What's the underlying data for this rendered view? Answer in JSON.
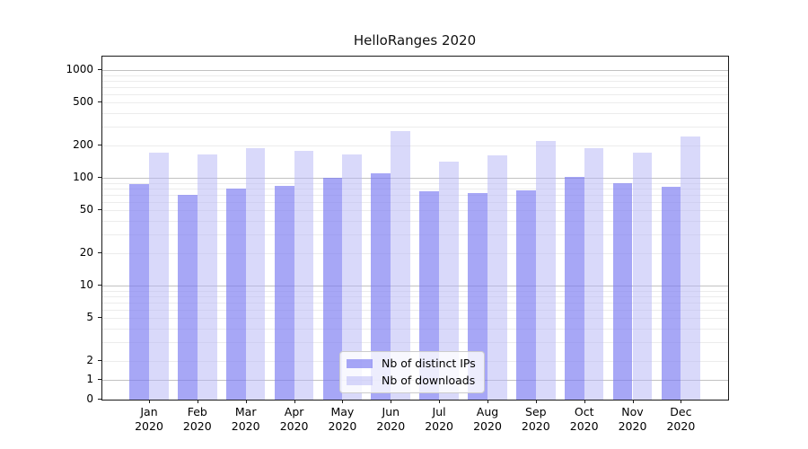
{
  "chart_data": {
    "type": "bar",
    "title": "HelloRanges 2020",
    "categories": [
      "Jan",
      "Feb",
      "Mar",
      "Apr",
      "May",
      "Jun",
      "Jul",
      "Aug",
      "Sep",
      "Oct",
      "Nov",
      "Dec"
    ],
    "category_year": "2020",
    "series": [
      {
        "name": "Nb of distinct IPs",
        "color": "#7979f2",
        "alpha": 0.66,
        "values": [
          88,
          70,
          80,
          84,
          100,
          110,
          75,
          72,
          77,
          102,
          90,
          82
        ]
      },
      {
        "name": "Nb of downloads",
        "color": "#b4b4f6",
        "alpha": 0.5,
        "values": [
          170,
          165,
          187,
          177,
          166,
          270,
          142,
          163,
          218,
          190,
          171,
          242
        ]
      }
    ],
    "y_ticks": [
      0,
      1,
      2,
      5,
      10,
      20,
      50,
      100,
      200,
      500,
      1000
    ],
    "y_scale": "symlog",
    "ylim": [
      0,
      1333
    ],
    "grid": "on",
    "legend_position": "lower center"
  },
  "colors": {
    "grid_major": "#c2c2c2",
    "grid_minor": "#ececec",
    "axis": "#1a1a1a",
    "background": "#ffffff"
  }
}
